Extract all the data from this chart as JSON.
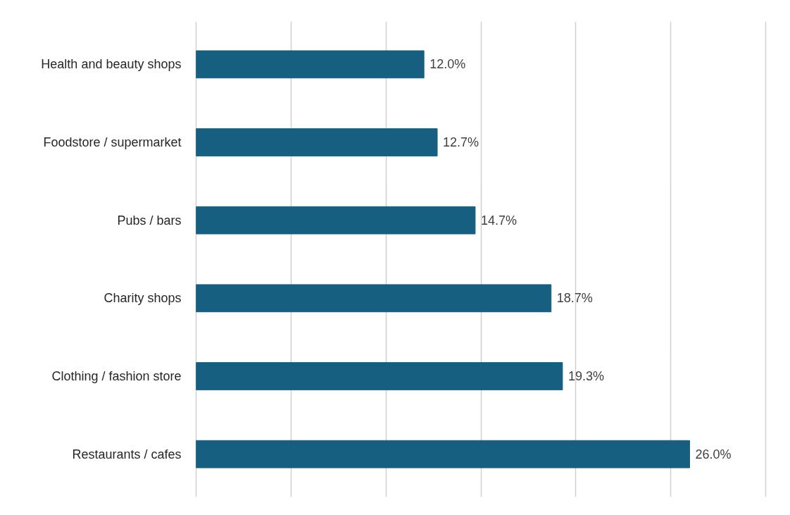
{
  "chart_data": {
    "type": "bar",
    "orientation": "horizontal",
    "categories": [
      "Health and beauty shops",
      "Foodstore / supermarket",
      "Pubs / bars",
      "Charity shops",
      "Clothing / fashion store",
      "Restaurants / cafes"
    ],
    "values": [
      12.0,
      12.7,
      14.7,
      18.7,
      19.3,
      26.0
    ],
    "value_labels": [
      "12.0%",
      "12.7%",
      "14.7%",
      "18.7%",
      "19.3%",
      "26.0%"
    ],
    "color": "#175f80",
    "xlim": [
      0,
      30
    ],
    "xticks": [
      {
        "value": 0,
        "label": null
      },
      {
        "value": 5,
        "label": null
      },
      {
        "value": 10,
        "label": null
      },
      {
        "value": 15,
        "label": null
      },
      {
        "value": 20,
        "label": null
      },
      {
        "value": 25,
        "label": null
      },
      {
        "value": 30,
        "label": null
      }
    ],
    "grid": "x",
    "tick_labels": "y"
  }
}
